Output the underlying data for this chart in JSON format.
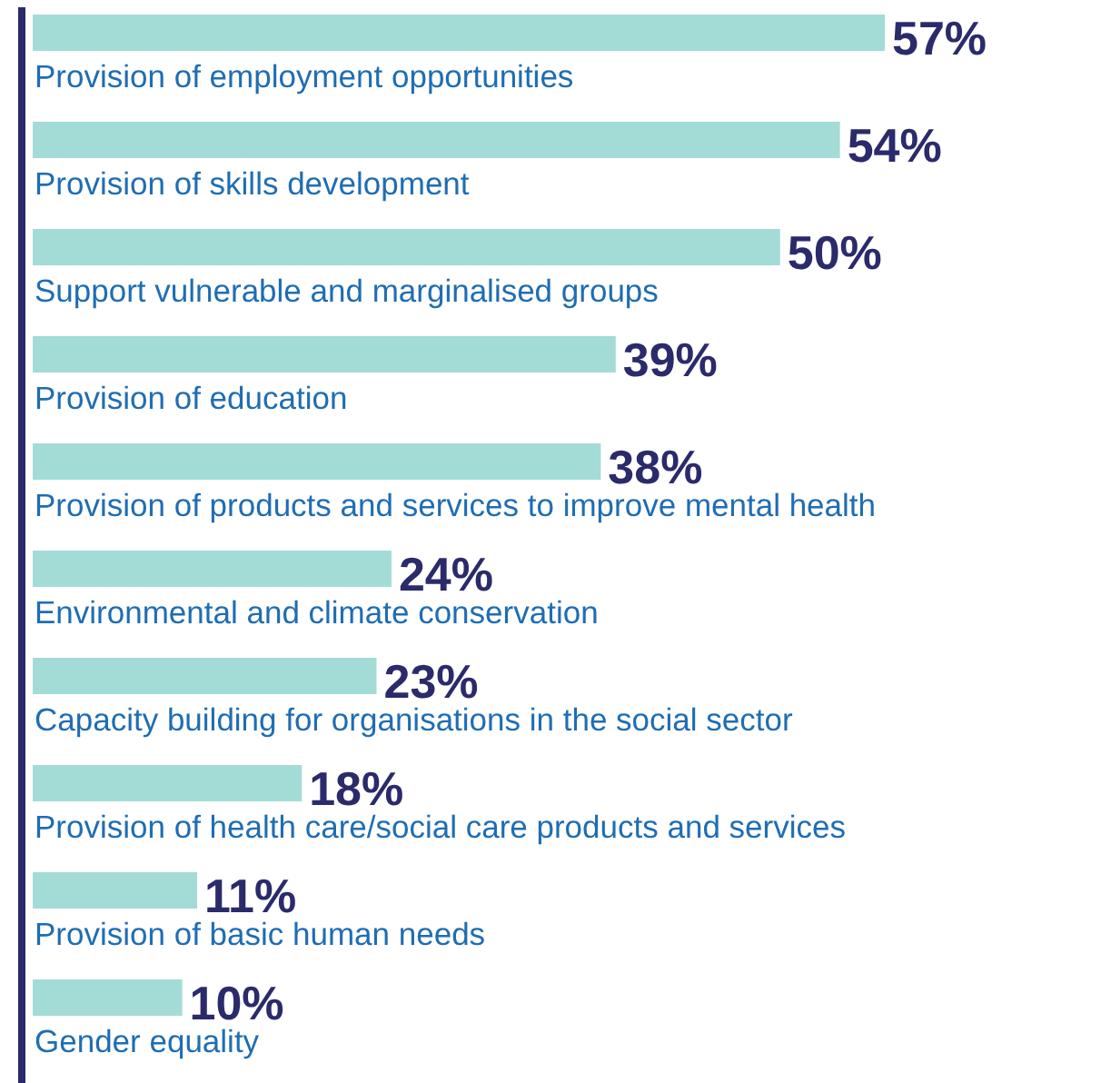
{
  "chart_data": {
    "type": "bar",
    "orientation": "horizontal",
    "color": "#a3dcd6",
    "value_labels": [
      "57%",
      "54%",
      "50%",
      "39%",
      "38%",
      "24%",
      "23%",
      "18%",
      "11%",
      "10%"
    ],
    "categories": [
      "Provision of employment opportunities",
      "Provision of skills development",
      "Support vulnerable and marginalised groups",
      "Provision of education",
      "Provision of products and services to improve mental health",
      "Environmental and climate conservation",
      "Capacity building for organisations in the social sector",
      "Provision of health care/social care products and services",
      "Provision of basic human needs",
      "Gender equality"
    ],
    "values": [
      57,
      54,
      50,
      39,
      38,
      24,
      23,
      18,
      11,
      10
    ]
  }
}
